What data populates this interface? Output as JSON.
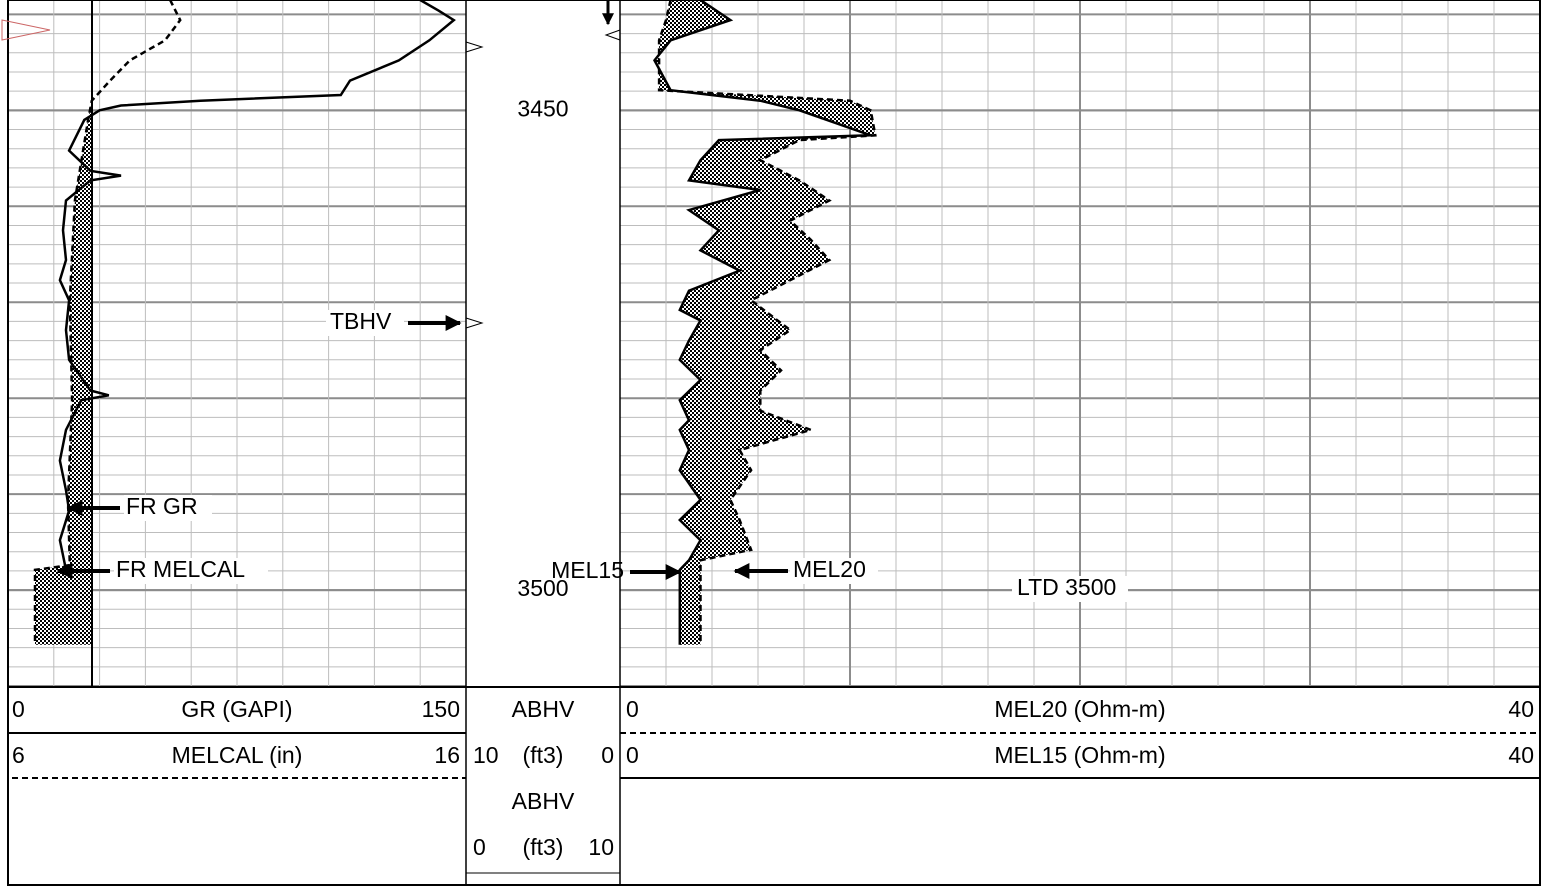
{
  "chart_data": {
    "type": "well-log",
    "ylim": [
      3438.5,
      3510.1
    ],
    "yticks": [
      3450,
      3500
    ],
    "grid": true,
    "tracks": [
      {
        "series": [
          {
            "name": "GR (GAPI)",
            "color": "#000000",
            "style": "solid",
            "xlim": [
              0,
              150
            ],
            "depth": [
              3438.5,
              3439.6,
              3440.6,
              3442.7,
              3444.8,
              3446.9,
              3448.4,
              3449.0,
              3449.5,
              3450.0,
              3451.0,
              3454.2,
              3456.3,
              3456.8,
              3457.3,
              3459.4,
              3462.5,
              3465.6,
              3467.7,
              3469.8,
              3472.9,
              3476.0,
              3479.2,
              3479.7,
              3480.2,
              3483.3,
              3486.5,
              3489.6,
              3491.7,
              3494.8,
              3497.9
            ],
            "values": [
              135,
              141,
              146,
              138,
              128,
              112,
              109,
              63,
              37,
              30,
              25,
              20,
              27,
              37,
              27,
              19,
              18,
              19,
              17,
              20,
              19,
              20,
              27,
              33,
              24,
              19,
              17,
              19,
              20,
              17,
              19
            ]
          },
          {
            "name": "MELCAL (in)",
            "color": "#000000",
            "style": "dashed",
            "xlim": [
              6,
              16
            ],
            "depth": [
              3438.5,
              3440.6,
              3442.7,
              3444.8,
              3446.9,
              3449.0,
              3451.0,
              3459.4,
              3469.8,
              3480.2,
              3490.6,
              3497.4,
              3497.9,
              3505.7
            ],
            "values": [
              9.54,
              9.76,
              9.43,
              8.66,
              8.23,
              7.83,
              7.75,
              7.46,
              7.35,
              7.4,
              7.31,
              7.35,
              6.59,
              6.59
            ]
          }
        ]
      },
      {
        "series": [
          {
            "name": "ABHV",
            "unit": "(ft3)",
            "xlim": [
              10,
              0
            ]
          },
          {
            "name": "ABHV",
            "unit": "(ft3)",
            "xlim": [
              0,
              10
            ]
          }
        ]
      },
      {
        "series": [
          {
            "name": "MEL20 (Ohm-m)",
            "color": "#000000",
            "style": "dashed",
            "xlim": [
              0,
              40
            ],
            "depth": [
              3438.5,
              3440.6,
              3442.7,
              3444.8,
              3447.9,
              3449.0,
              3450.0,
              3452.6,
              3453.1,
              3455.2,
              3457.3,
              3459.4,
              3461.5,
              3463.5,
              3465.6,
              3467.7,
              3469.8,
              3472.9,
              3475.0,
              3477.1,
              3479.2,
              3481.3,
              3483.3,
              3485.4,
              3487.5,
              3490.6,
              3492.7,
              3495.8,
              3496.9,
              3497.9,
              3505.7
            ],
            "values": [
              2.2,
              2.0,
              1.7,
              1.7,
              1.7,
              10.0,
              10.9,
              11.1,
              7.8,
              6.1,
              7.8,
              9.1,
              7.4,
              8.3,
              9.1,
              7.4,
              5.7,
              7.4,
              6.1,
              7.0,
              6.1,
              6.1,
              8.3,
              5.2,
              5.7,
              4.8,
              5.2,
              5.7,
              3.5,
              3.5,
              3.5
            ]
          },
          {
            "name": "MEL15 (Ohm-m)",
            "color": "#000000",
            "style": "solid",
            "xlim": [
              0,
              40
            ],
            "depth": [
              3438.5,
              3440.6,
              3442.7,
              3444.8,
              3447.9,
              3449.0,
              3450.0,
              3452.6,
              3453.1,
              3455.2,
              3457.3,
              3458.3,
              3460.4,
              3462.5,
              3464.6,
              3466.7,
              3468.8,
              3470.8,
              3471.9,
              3474.0,
              3476.0,
              3478.1,
              3480.2,
              3482.3,
              3483.3,
              3485.4,
              3487.5,
              3490.6,
              3492.7,
              3494.8,
              3496.9,
              3497.9,
              3505.7
            ],
            "values": [
              3.5,
              4.8,
              2.2,
              1.5,
              2.2,
              6.1,
              7.8,
              10.9,
              4.3,
              3.5,
              3.0,
              6.1,
              3.0,
              4.3,
              3.5,
              5.2,
              3.0,
              2.6,
              3.5,
              3.0,
              2.6,
              3.5,
              2.6,
              3.0,
              2.6,
              3.0,
              2.6,
              3.5,
              2.6,
              3.5,
              3.0,
              2.6,
              2.6
            ]
          }
        ]
      }
    ],
    "annotations": [
      "TBHV",
      "FR GR",
      "FR MELCAL",
      "MEL15",
      "MEL20",
      "LTD 3500"
    ]
  }
}
